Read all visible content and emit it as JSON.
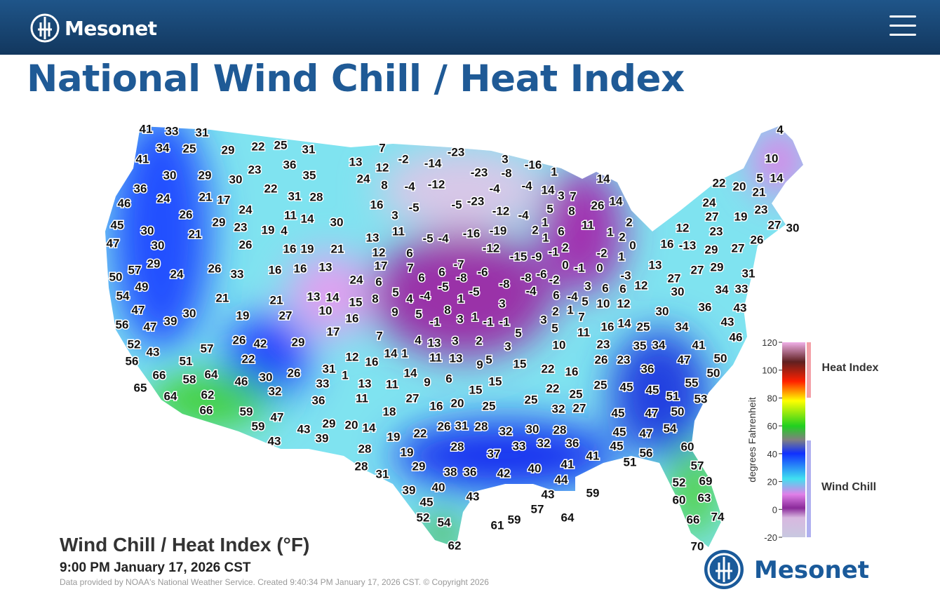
{
  "header": {
    "logo": "Mesonet"
  },
  "page_title": "National Wind Chill / Heat Index",
  "map": {
    "title": "Wind Chill / Heat Index (°F)",
    "timestamp": "9:00 PM January 17, 2026 CST",
    "credit": "Data provided by NOAA's National Weather Service. Created 9:40:34 PM January 17, 2026 CST. © Copyright 2026",
    "logo": "Mesonet",
    "legend": {
      "axis_label": "degrees Fahrenheit",
      "heat_label": "Heat Index",
      "chill_label": "Wind Chill",
      "ticks": [
        120,
        100,
        80,
        60,
        40,
        20,
        0,
        -20
      ]
    },
    "stations": [
      41,
      33,
      31,
      34,
      25,
      29,
      22,
      25,
      31,
      7,
      -23,
      41,
      13,
      12,
      -2,
      -14,
      3,
      -16,
      4,
      10,
      30,
      29,
      30,
      23,
      36,
      35,
      24,
      8,
      -4,
      -12,
      -23,
      -8,
      1,
      14,
      5,
      14,
      22,
      20,
      21,
      36,
      24,
      21,
      17,
      22,
      31,
      28,
      -4,
      -4,
      14,
      3,
      7,
      16,
      -5,
      -5,
      -23,
      26,
      14,
      24,
      23,
      46,
      26,
      29,
      24,
      11,
      14,
      30,
      3,
      -12,
      -4,
      5,
      8,
      27,
      19,
      45,
      30,
      21,
      23,
      19,
      4,
      13,
      11,
      -5,
      -4,
      -16,
      -19,
      1,
      2,
      1,
      6,
      11,
      1,
      2,
      2,
      12,
      23,
      27,
      30,
      47,
      30,
      26,
      16,
      19,
      21,
      12,
      6,
      -12,
      -15,
      -9,
      -1,
      2,
      0,
      -2,
      1,
      16,
      -13,
      29,
      27,
      26,
      57,
      29,
      24,
      26,
      33,
      16,
      16,
      13,
      17,
      7,
      6,
      -7,
      -6,
      0,
      -1,
      0,
      13,
      -3,
      27,
      27,
      29,
      31,
      50,
      49,
      24,
      6,
      6,
      -5,
      -8,
      -8,
      -8,
      -6,
      -2,
      3,
      6,
      6,
      12,
      30,
      34,
      33,
      54,
      21,
      21,
      13,
      14,
      15,
      8,
      5,
      4,
      -4,
      1,
      -5,
      -4,
      6,
      -4,
      5,
      10,
      12,
      3,
      36,
      43,
      47,
      19,
      27,
      10,
      16,
      9,
      5,
      8,
      3,
      1,
      -1,
      -1,
      3,
      2,
      1,
      7,
      30,
      56,
      47,
      39,
      30,
      5,
      11,
      16,
      14,
      25,
      34,
      43,
      -1,
      17,
      7,
      5,
      52,
      57,
      26,
      42,
      29,
      4,
      13,
      3,
      2,
      3,
      10,
      23,
      35,
      34,
      41,
      46,
      43,
      56,
      51,
      22,
      12,
      16,
      14,
      1,
      11,
      13,
      9,
      5,
      15,
      26,
      23,
      47,
      50,
      66,
      58,
      64,
      46,
      30,
      26,
      31,
      1,
      14,
      9,
      6,
      22,
      16,
      36,
      50,
      65,
      32,
      33,
      13,
      11,
      15,
      15,
      22,
      25,
      25,
      45,
      45,
      55,
      51,
      53,
      64,
      62,
      36,
      11,
      27,
      16,
      20,
      25,
      25,
      32,
      27,
      66,
      59,
      47,
      18,
      45,
      47,
      50,
      59,
      43,
      29,
      20,
      14,
      22,
      26,
      31,
      28,
      32,
      30,
      28,
      45,
      47,
      54,
      43,
      39,
      19,
      28,
      19,
      28,
      33,
      32,
      36,
      45,
      60,
      41,
      37,
      56,
      51,
      41,
      28,
      29,
      57,
      31,
      38,
      36,
      42,
      40,
      44,
      52,
      69,
      39,
      40,
      43,
      59,
      43,
      45,
      57,
      60,
      63,
      52,
      54,
      61,
      59,
      64,
      66,
      74,
      62,
      70
    ]
  }
}
